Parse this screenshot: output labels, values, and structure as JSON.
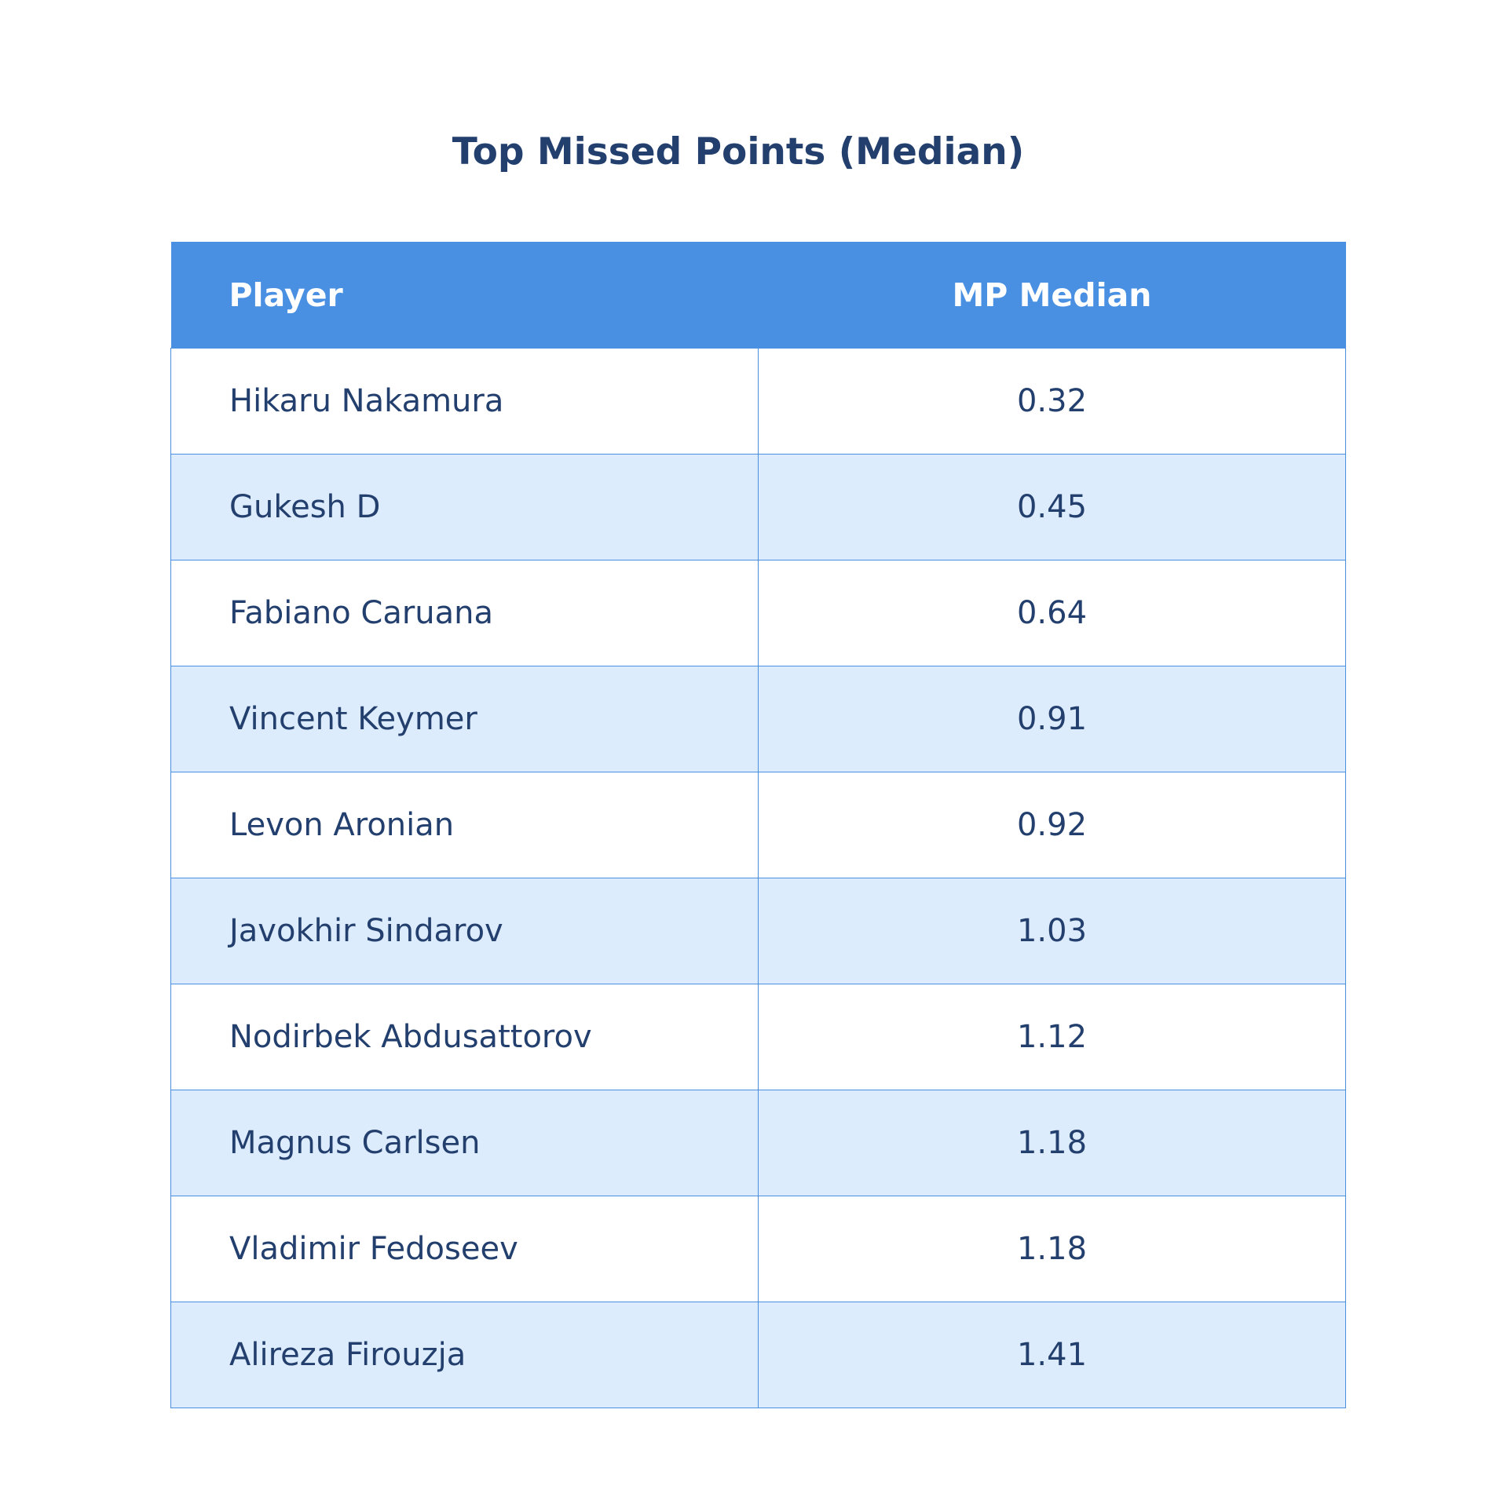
{
  "chart_data": {
    "type": "table",
    "title": "Top Missed Points (Median)",
    "columns": [
      "Player",
      "MP Median"
    ],
    "rows": [
      {
        "player": "Hikaru Nakamura",
        "median": "0.32"
      },
      {
        "player": "Gukesh D",
        "median": "0.45"
      },
      {
        "player": "Fabiano Caruana",
        "median": "0.64"
      },
      {
        "player": "Vincent Keymer",
        "median": "0.91"
      },
      {
        "player": "Levon Aronian",
        "median": "0.92"
      },
      {
        "player": "Javokhir Sindarov",
        "median": "1.03"
      },
      {
        "player": "Nodirbek Abdusattorov",
        "median": "1.12"
      },
      {
        "player": "Magnus Carlsen",
        "median": "1.18"
      },
      {
        "player": "Vladimir Fedoseev",
        "median": "1.18"
      },
      {
        "player": "Alireza Firouzja",
        "median": "1.41"
      }
    ]
  },
  "colors": {
    "header_bg": "#4a90e2",
    "header_text": "#ffffff",
    "row_alt_bg": "#ddecfc",
    "text": "#233f6e"
  }
}
